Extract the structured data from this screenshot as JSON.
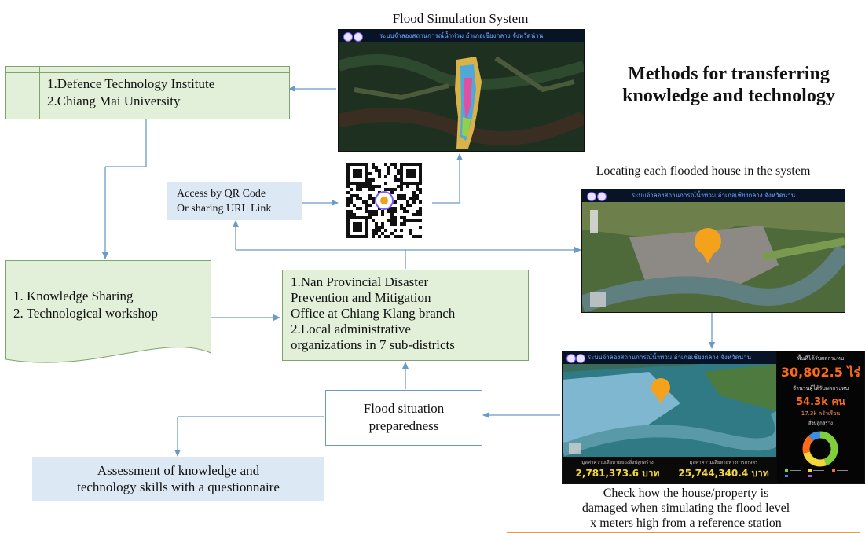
{
  "title": "Methods for transferring knowledge and technology",
  "flood_sim": {
    "label": "Flood Simulation System",
    "screen_title": "ระบบจำลองสถานการณ์น้ำท่วม อำเภอเชียงกลาง จังหวัดน่าน"
  },
  "institutes": {
    "line1": "1.Defence Technology Institute",
    "line2": "2.Chiang Mai University"
  },
  "qr_access": {
    "line1": "Access by QR Code",
    "line2": "Or sharing URL Link"
  },
  "locating": {
    "label": "Locating each flooded house in the system",
    "screen_title": "ระบบจำลองสถานการณ์น้ำท่วม อำเภอเชียงกลาง จังหวัดน่าน"
  },
  "knowledge": {
    "line1": "1. Knowledge Sharing",
    "line2": "2. Technological workshop"
  },
  "nan_office": {
    "line1": "1.Nan Provincial Disaster",
    "line2": "Prevention and Mitigation",
    "line3": "Office at Chiang Klang branch",
    "line4": "2.Local administrative",
    "line5": "organizations in 7 sub-districts"
  },
  "preparedness": {
    "line1": "Flood situation",
    "line2": "preparedness"
  },
  "assessment": {
    "line1": "Assessment of knowledge and",
    "line2": "technology skills with a questionnaire"
  },
  "dashboard": {
    "screen_title": "ระบบจำลองสถานการณ์น้ำท่วม อำเภอเชียงกลาง จังหวัดน่าน",
    "area_label": "พื้นที่ได้รับผลกระทบ",
    "area_value": "30,802.5 ไร่",
    "people_label": "จำนวนผู้ได้รับผลกระทบ",
    "people_value": "54.3k คน",
    "households": "17.3k ครัวเรือน",
    "chart_label": "สิ่งปลูกสร้าง",
    "damage_left_label": "มูลค่าความเสียหายของสิ่งปลูกสร้าง",
    "damage_left_value": "2,781,373.6 บาท",
    "damage_right_label": "มูลค่าความเสียหายทางการเกษตร",
    "damage_right_value": "25,744,340.4 บาท"
  },
  "check": {
    "line1": "Check how the house/property is",
    "line2": "damaged when simulating the flood level",
    "line3": "x meters high from a reference station"
  },
  "colors": {
    "green_box": "#e2efd9",
    "blue_box": "#dce9f5",
    "arrow": "#6a9ac8",
    "stat_orange": "#ff6a1a",
    "stat_yellow": "#f2d63a"
  }
}
